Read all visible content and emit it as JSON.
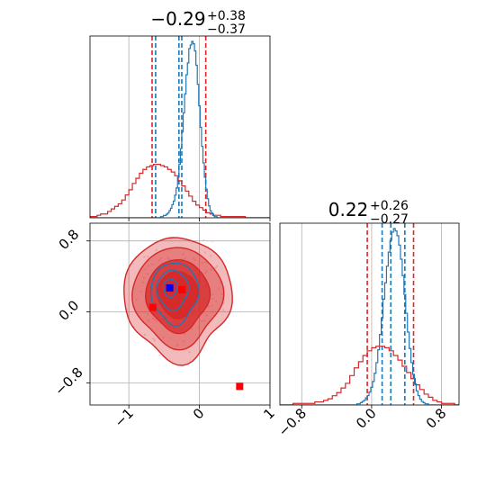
{
  "chart_data": {
    "type": "corner",
    "colors": {
      "sample_a": "#d62728",
      "sample_b": "#1f77b4",
      "truth_blue": "#0000ff",
      "truth_red": "#ff0000",
      "grid": "#b0b0b0"
    },
    "params": [
      {
        "title_main": "−0.29",
        "title_sup": "+0.38",
        "title_sub": "−0.37",
        "range": [
          -1.55,
          1.0
        ]
      },
      {
        "title_main": "0.22",
        "title_sup": "+0.26",
        "title_sub": "−0.27",
        "range": [
          -1.05,
          1.0
        ]
      }
    ],
    "axes": {
      "x_ticks": [
        {
          "value": -1.0,
          "label": "−1"
        },
        {
          "value": 0.0,
          "label": "0"
        },
        {
          "value": 1.0,
          "label": "1"
        }
      ],
      "y_ticks": [
        {
          "value": 0.8,
          "label": "0.8"
        },
        {
          "value": 0.0,
          "label": "0.0"
        },
        {
          "value": -0.8,
          "label": "−0.8"
        }
      ],
      "x2_ticks": [
        {
          "value": -0.8,
          "label": "−0.8"
        },
        {
          "value": 0.0,
          "label": "0.0"
        },
        {
          "value": 0.8,
          "label": "0.8"
        }
      ],
      "grid": true
    },
    "quantiles": {
      "p1_red": [
        -0.67,
        0.09
      ],
      "p1_blue": [
        -0.62,
        -0.29,
        -0.25
      ],
      "p2_red": [
        -0.05,
        0.48
      ],
      "p2_blue": [
        0.12,
        0.22,
        0.38
      ]
    },
    "hist_p1_red": {
      "bin_start": -1.55,
      "bin_width": 0.05,
      "values": [
        1,
        1,
        2,
        3,
        3,
        5,
        7,
        9,
        11,
        14,
        18,
        22,
        27,
        31,
        35,
        38,
        40,
        41,
        42,
        42,
        41,
        40,
        38,
        36,
        33,
        29,
        25,
        21,
        17,
        13,
        10,
        8,
        6,
        4,
        3,
        2,
        2,
        1,
        1,
        1,
        1,
        1,
        1,
        1,
        0,
        0,
        0,
        0,
        0,
        0,
        0
      ]
    },
    "hist_p1_blue": {
      "bin_start": -1.55,
      "bin_width": 0.02,
      "values": [
        0,
        0,
        0,
        0,
        0,
        0,
        0,
        0,
        0,
        0,
        0,
        0,
        0,
        0,
        0,
        0,
        0,
        0,
        0,
        0,
        0,
        0,
        0,
        0,
        0,
        0,
        0,
        0,
        0,
        0,
        0,
        0,
        0,
        0,
        0,
        0,
        0,
        0,
        0,
        0,
        0,
        0,
        0,
        0,
        0,
        0,
        0,
        0,
        0,
        0,
        1,
        1,
        2,
        2,
        3,
        4,
        6,
        8,
        11,
        14,
        19,
        25,
        34,
        45,
        58,
        72,
        88,
        104,
        120,
        130,
        142,
        145,
        148,
        146,
        140,
        128,
        112,
        94,
        76,
        60,
        46,
        34,
        24,
        16,
        10,
        6,
        4,
        2,
        1,
        1,
        0,
        0,
        0,
        0,
        0,
        0,
        0,
        0,
        0,
        0,
        0,
        0,
        0,
        0,
        0,
        0,
        0,
        0,
        0,
        0,
        0,
        0,
        0,
        0,
        0,
        0,
        0,
        0,
        0,
        0,
        0,
        0,
        0,
        0,
        0,
        0,
        0,
        0
      ]
    },
    "hist_p2_red": {
      "bin_start": -1.05,
      "bin_width": 0.05,
      "values": [
        0,
        0,
        0,
        1,
        1,
        1,
        1,
        1,
        2,
        2,
        3,
        4,
        6,
        8,
        11,
        14,
        19,
        24,
        28,
        32,
        35,
        37,
        38,
        38,
        37,
        35,
        32,
        29,
        25,
        21,
        17,
        13,
        10,
        7,
        5,
        3,
        2,
        1,
        1,
        1,
        0
      ]
    },
    "hist_p2_blue": {
      "bin_start": -1.05,
      "bin_width": 0.02,
      "values": [
        0,
        0,
        0,
        0,
        0,
        0,
        0,
        0,
        0,
        0,
        0,
        0,
        0,
        0,
        0,
        0,
        0,
        0,
        0,
        0,
        0,
        0,
        0,
        0,
        0,
        0,
        0,
        0,
        0,
        0,
        0,
        0,
        0,
        0,
        0,
        0,
        0,
        0,
        0,
        0,
        0,
        0,
        0,
        0,
        1,
        1,
        2,
        3,
        4,
        6,
        8,
        11,
        15,
        20,
        27,
        36,
        47,
        60,
        74,
        90,
        104,
        118,
        130,
        140,
        147,
        150,
        148,
        144,
        136,
        124,
        110,
        94,
        78,
        62,
        48,
        36,
        26,
        18,
        12,
        8,
        5,
        3,
        2,
        1,
        1,
        0,
        0,
        0,
        0,
        0,
        0,
        0,
        0,
        0,
        0,
        0,
        0,
        0,
        0,
        0,
        0,
        0,
        0,
        0
      ]
    },
    "scatter_center": [
      -0.29,
      0.22
    ],
    "truth_points": [
      {
        "x": -0.42,
        "y": 0.27,
        "color": "#0000ff"
      },
      {
        "x": -0.25,
        "y": 0.25,
        "color": "#ff0000"
      },
      {
        "x": -0.66,
        "y": 0.05,
        "color": "#ff0000"
      },
      {
        "x": 0.57,
        "y": -0.84,
        "color": "#ff0000"
      }
    ]
  }
}
